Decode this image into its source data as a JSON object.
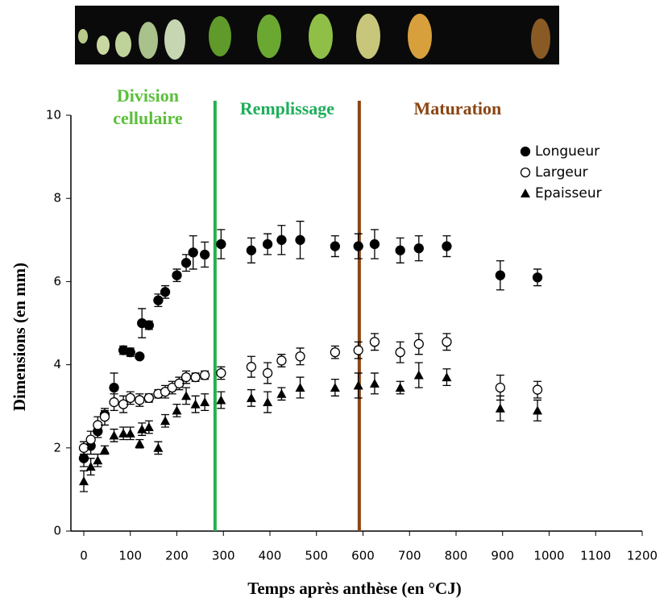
{
  "chart_data": {
    "type": "scatter",
    "xlabel": "Temps après anthèse (en °CJ)",
    "ylabel": "Dimensions (en mm)",
    "xlim": [
      0,
      1200
    ],
    "xticks": [
      0,
      100,
      200,
      300,
      400,
      500,
      600,
      700,
      800,
      900,
      1000,
      1100,
      1200
    ],
    "ylim": [
      0,
      10
    ],
    "yticks": [
      0,
      2,
      4,
      6,
      8,
      10
    ],
    "grid": false,
    "legend": "upper right",
    "vlines": [
      {
        "x": 282,
        "color": "#22b14c"
      },
      {
        "x": 592,
        "color": "#8b4513"
      }
    ],
    "phases": [
      {
        "label": "Division cellulaire",
        "color": "#5cbf3c"
      },
      {
        "label": "Remplissage",
        "color": "#1fae5b"
      },
      {
        "label": "Maturation",
        "color": "#8b4513"
      }
    ],
    "series": [
      {
        "name": "Longueur",
        "marker": "filled-circle",
        "color": "#000000",
        "x": [
          0,
          15,
          30,
          45,
          65,
          85,
          100,
          120,
          125,
          140,
          160,
          175,
          200,
          220,
          235,
          260,
          295,
          360,
          395,
          425,
          465,
          540,
          590,
          625,
          680,
          720,
          780,
          895,
          975
        ],
        "values": [
          1.75,
          2.05,
          2.4,
          2.8,
          3.45,
          4.35,
          4.3,
          4.2,
          5.0,
          4.95,
          5.55,
          5.75,
          6.15,
          6.45,
          6.7,
          6.65,
          6.9,
          6.75,
          6.9,
          7.0,
          7.0,
          6.85,
          6.85,
          6.9,
          6.75,
          6.8,
          6.85,
          6.15,
          6.1
        ],
        "errors": [
          0.2,
          0.2,
          0.15,
          0.1,
          0.35,
          0.1,
          0.1,
          0.05,
          0.35,
          0.1,
          0.15,
          0.15,
          0.15,
          0.2,
          0.4,
          0.3,
          0.35,
          0.3,
          0.25,
          0.35,
          0.45,
          0.25,
          0.3,
          0.35,
          0.3,
          0.3,
          0.25,
          0.35,
          0.2
        ]
      },
      {
        "name": "Largeur",
        "marker": "open-circle",
        "color": "#000000",
        "x": [
          0,
          15,
          30,
          45,
          65,
          85,
          100,
          120,
          140,
          160,
          175,
          190,
          205,
          220,
          240,
          260,
          295,
          360,
          395,
          425,
          465,
          540,
          590,
          625,
          680,
          720,
          780,
          895,
          975
        ],
        "values": [
          2.0,
          2.2,
          2.55,
          2.75,
          3.1,
          3.05,
          3.2,
          3.15,
          3.2,
          3.3,
          3.35,
          3.45,
          3.55,
          3.7,
          3.7,
          3.75,
          3.8,
          3.95,
          3.8,
          4.1,
          4.2,
          4.3,
          4.35,
          4.55,
          4.3,
          4.5,
          4.55,
          3.45,
          3.4
        ],
        "errors": [
          0.15,
          0.2,
          0.2,
          0.2,
          0.2,
          0.2,
          0.15,
          0.15,
          0.1,
          0.1,
          0.15,
          0.15,
          0.15,
          0.15,
          0.1,
          0.1,
          0.15,
          0.25,
          0.25,
          0.15,
          0.2,
          0.15,
          0.2,
          0.2,
          0.25,
          0.25,
          0.2,
          0.3,
          0.2
        ]
      },
      {
        "name": "Epaisseur",
        "marker": "triangle",
        "color": "#000000",
        "x": [
          0,
          15,
          30,
          45,
          65,
          85,
          100,
          120,
          125,
          140,
          160,
          175,
          200,
          220,
          240,
          260,
          295,
          360,
          395,
          425,
          465,
          540,
          590,
          625,
          680,
          720,
          780,
          895,
          975
        ],
        "values": [
          1.2,
          1.55,
          1.7,
          1.95,
          2.3,
          2.35,
          2.35,
          2.1,
          2.45,
          2.5,
          2.0,
          2.65,
          2.9,
          3.25,
          3.05,
          3.1,
          3.15,
          3.2,
          3.1,
          3.3,
          3.45,
          3.45,
          3.5,
          3.55,
          3.45,
          3.75,
          3.7,
          2.95,
          2.9
        ],
        "errors": [
          0.25,
          0.2,
          0.15,
          0.1,
          0.15,
          0.15,
          0.15,
          0.1,
          0.15,
          0.15,
          0.15,
          0.15,
          0.15,
          0.2,
          0.2,
          0.2,
          0.2,
          0.2,
          0.25,
          0.15,
          0.25,
          0.2,
          0.3,
          0.25,
          0.15,
          0.3,
          0.2,
          0.3,
          0.25
        ]
      }
    ]
  }
}
